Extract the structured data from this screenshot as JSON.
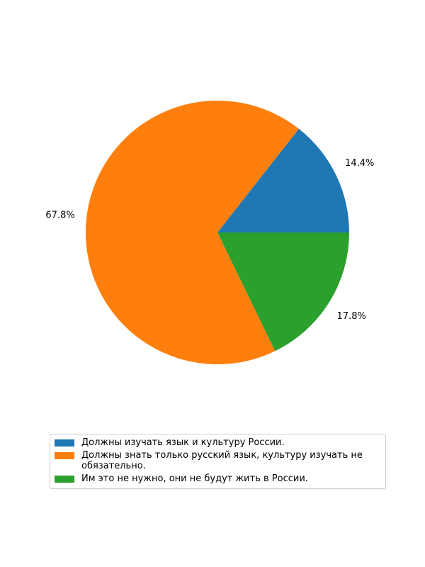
{
  "chart_data": {
    "type": "pie",
    "title": "",
    "categories": [
      "Должны изучать язык и культуру России.",
      "Должны знать только русский язык, культуру изучать не обязательно.",
      "Им это не нужно, они не будут жить в России."
    ],
    "values": [
      14.4,
      67.8,
      17.8
    ],
    "labels": [
      "14.4%",
      "67.8%",
      "17.8%"
    ],
    "colors": [
      "#1f77b4",
      "#ff7f0e",
      "#2ca02c"
    ],
    "start_angle": 0,
    "direction": "counterclockwise",
    "legend_position": "bottom-center"
  }
}
